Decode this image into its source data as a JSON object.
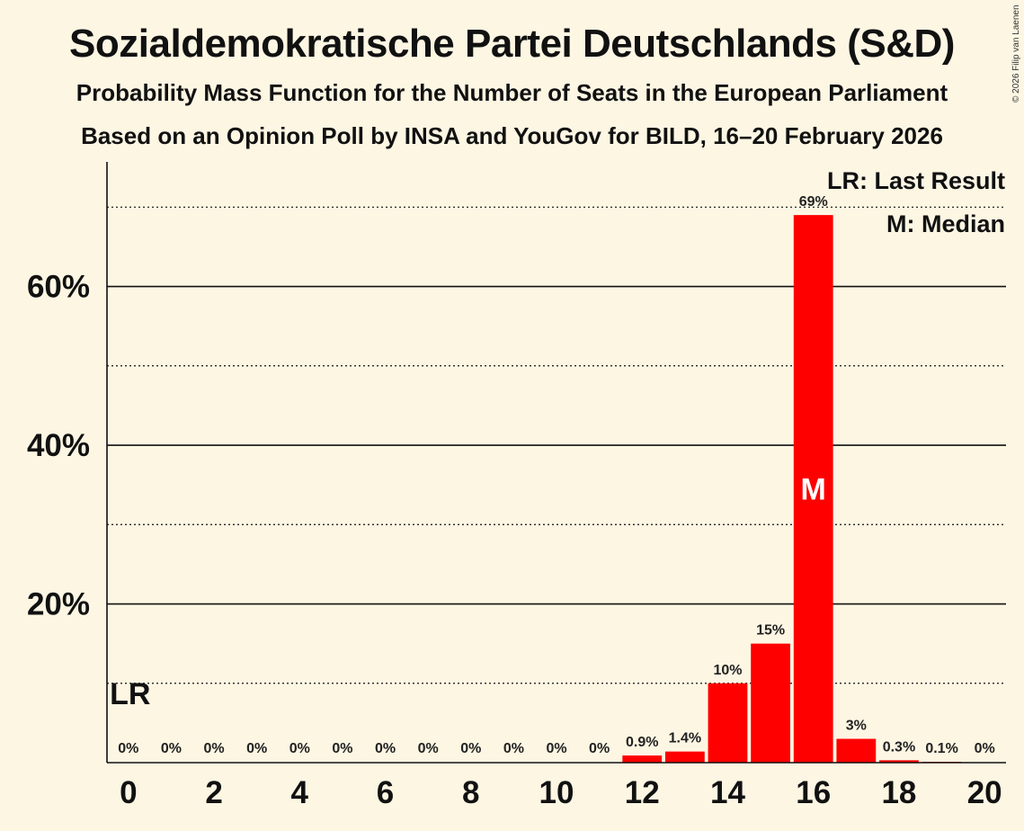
{
  "title": "Sozialdemokratische Partei Deutschlands (S&D)",
  "subtitle": "Probability Mass Function for the Number of Seats in the European Parliament",
  "source_line": "Based on an Opinion Poll by INSA and YouGov for BILD, 16–20 February 2026",
  "copyright": "© 2026 Filip van Laenen",
  "legend": {
    "last_result": "LR: Last Result",
    "median": "M: Median"
  },
  "colors": {
    "bar": "#ff0000",
    "background": "#fdf6e3",
    "median_text": "#ffffff"
  },
  "chart_data": {
    "type": "bar",
    "title": "Sozialdemokratische Partei Deutschlands (S&D)",
    "xlabel": "",
    "ylabel": "",
    "categories": [
      0,
      1,
      2,
      3,
      4,
      5,
      6,
      7,
      8,
      9,
      10,
      11,
      12,
      13,
      14,
      15,
      16,
      17,
      18,
      19,
      20
    ],
    "values": [
      0,
      0,
      0,
      0,
      0,
      0,
      0,
      0,
      0,
      0,
      0,
      0,
      0.9,
      1.4,
      10,
      15,
      69,
      3,
      0.3,
      0.1,
      0
    ],
    "value_labels": [
      "0%",
      "0%",
      "0%",
      "0%",
      "0%",
      "0%",
      "0%",
      "0%",
      "0%",
      "0%",
      "0%",
      "0%",
      "0.9%",
      "1.4%",
      "10%",
      "15%",
      "69%",
      "3%",
      "0.3%",
      "0.1%",
      "0%"
    ],
    "x_ticks": [
      0,
      2,
      4,
      6,
      8,
      10,
      12,
      14,
      16,
      18,
      20
    ],
    "y_ticks": [
      20,
      40,
      60
    ],
    "y_tick_labels": [
      "20%",
      "40%",
      "60%"
    ],
    "y_dotted_gridlines": [
      10,
      30,
      50,
      70
    ],
    "ylim": [
      0,
      75.7
    ],
    "xlim": [
      -0.5,
      20.5
    ],
    "median": 16,
    "median_label": "M",
    "last_result": 0,
    "last_result_label": "LR",
    "legend_position": "top-right"
  }
}
